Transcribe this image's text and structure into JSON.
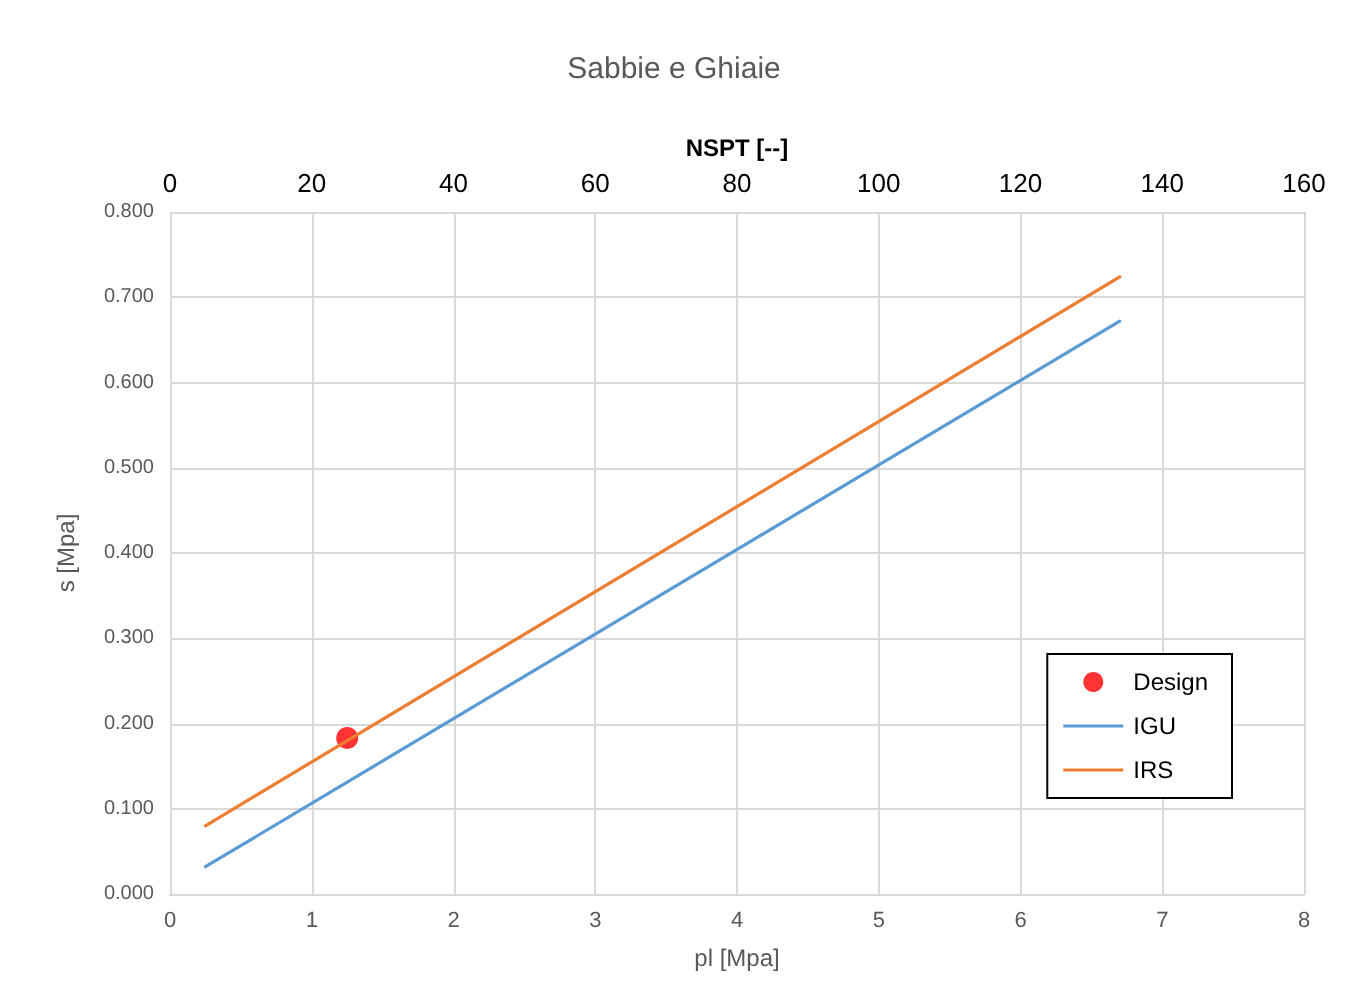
{
  "chart_data": {
    "type": "line",
    "title": "Sabbie e Ghiaie",
    "xlabel": "pl [Mpa]",
    "ylabel": "s [Mpa]",
    "x2label": "NSPT [--]",
    "xlim": [
      0,
      8
    ],
    "xticks": [
      0,
      1,
      2,
      3,
      4,
      5,
      6,
      7,
      8
    ],
    "x2lim": [
      0,
      160
    ],
    "x2ticks": [
      0,
      20,
      40,
      60,
      80,
      100,
      120,
      140,
      160
    ],
    "ylim": [
      0,
      0.8
    ],
    "yticks": [
      {
        "value": 0,
        "label": "0.000"
      },
      {
        "value": 0.1,
        "label": "0.100"
      },
      {
        "value": 0.2,
        "label": "0.200"
      },
      {
        "value": 0.3,
        "label": "0.300"
      },
      {
        "value": 0.4,
        "label": "0.400"
      },
      {
        "value": 0.5,
        "label": "0.500"
      },
      {
        "value": 0.6,
        "label": "0.600"
      },
      {
        "value": 0.7,
        "label": "0.700"
      },
      {
        "value": 0.8,
        "label": "0.800"
      }
    ],
    "grid": true,
    "legend": "bottom right",
    "marker": "none",
    "series": [
      {
        "name": "Design",
        "type": "scatter",
        "marker": "circle",
        "color": "#ff0000",
        "x": [
          1.25
        ],
        "values": [
          0.183
        ]
      },
      {
        "name": "IGU",
        "color": "#5b9bd5",
        "x": [
          0.25,
          6.7
        ],
        "values": [
          0.032,
          0.672
        ]
      },
      {
        "name": "IRS",
        "color": "#ed7d31",
        "x": [
          0.25,
          6.7
        ],
        "values": [
          0.08,
          0.724
        ]
      }
    ]
  }
}
